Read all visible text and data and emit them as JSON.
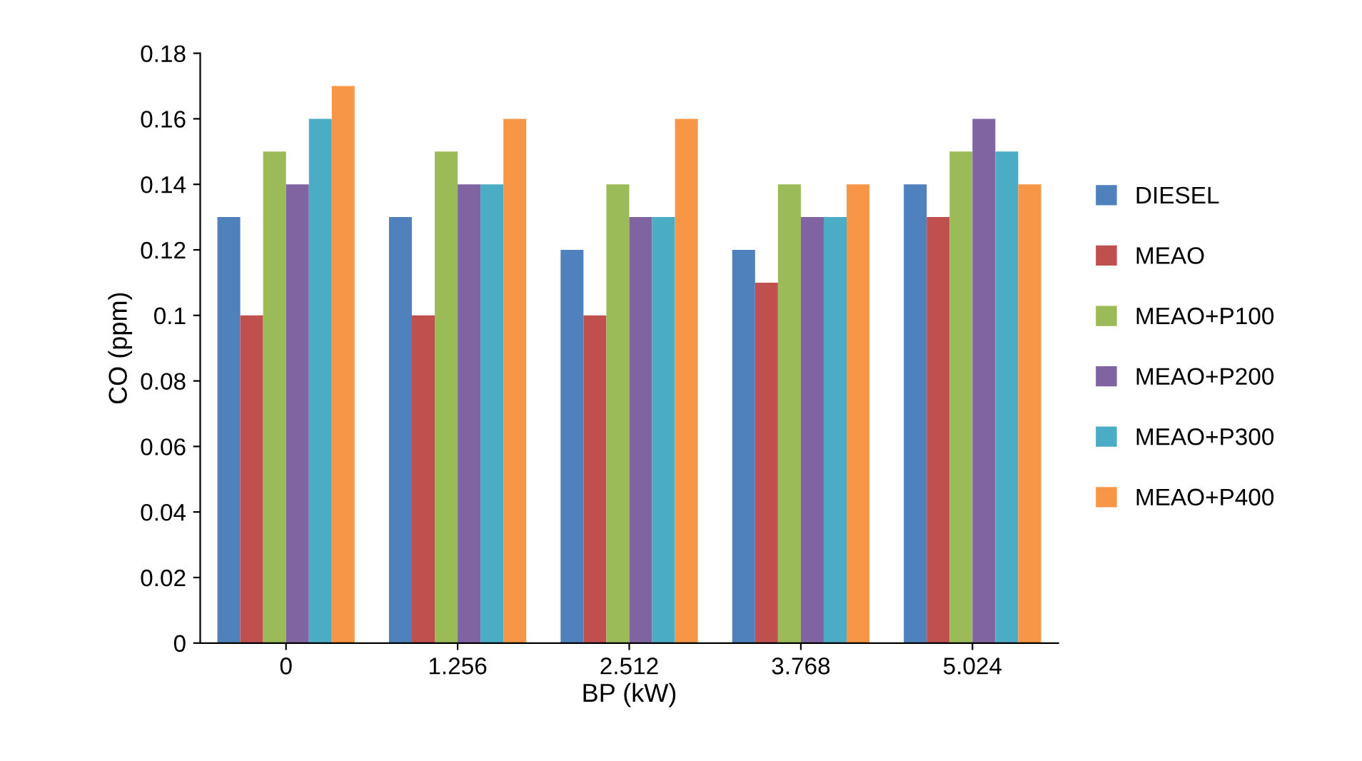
{
  "chart_data": {
    "type": "bar",
    "xlabel": "BP (kW)",
    "ylabel": "CO (ppm)",
    "categories": [
      "0",
      "1.256",
      "2.512",
      "3.768",
      "5.024"
    ],
    "series": [
      {
        "name": "DIESEL",
        "color": "#4f81bd",
        "values": [
          0.13,
          0.13,
          0.12,
          0.12,
          0.14
        ]
      },
      {
        "name": "MEAO",
        "color": "#c0504d",
        "values": [
          0.1,
          0.1,
          0.1,
          0.11,
          0.13
        ]
      },
      {
        "name": "MEAO+P100",
        "color": "#9bbb59",
        "values": [
          0.15,
          0.15,
          0.14,
          0.14,
          0.15
        ]
      },
      {
        "name": "MEAO+P200",
        "color": "#8064a2",
        "values": [
          0.14,
          0.14,
          0.13,
          0.13,
          0.16
        ]
      },
      {
        "name": "MEAO+P300",
        "color": "#4bacc6",
        "values": [
          0.16,
          0.14,
          0.13,
          0.13,
          0.15
        ]
      },
      {
        "name": "MEAO+P400",
        "color": "#f79646",
        "values": [
          0.17,
          0.16,
          0.16,
          0.14,
          0.14
        ]
      }
    ],
    "ylim": [
      0,
      0.18
    ],
    "yticks": [
      0,
      0.02,
      0.04,
      0.06,
      0.08,
      {
        "value": 0.1,
        "label": "0.1"
      },
      0.12,
      0.14,
      0.16,
      0.18
    ],
    "grid": false,
    "legend": "right"
  }
}
